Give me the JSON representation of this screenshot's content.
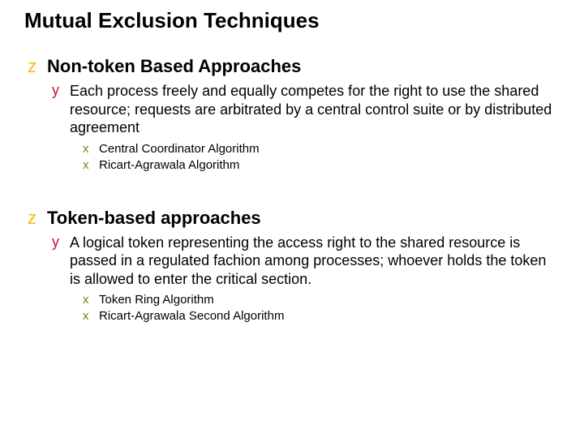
{
  "colors": {
    "title": "#000000",
    "z_bullet": "#fdb913",
    "y_bullet": "#c41230",
    "x_bullet": "#808000",
    "body_text": "#000000",
    "background": "#ffffff"
  },
  "typography": {
    "title_fontsize": 26,
    "z_text_fontsize": 22,
    "z_bullet_fontsize": 22,
    "y_text_fontsize": 18,
    "y_bullet_fontsize": 18,
    "x_text_fontsize": 15,
    "x_bullet_fontsize": 15
  },
  "title": "Mutual Exclusion Techniques",
  "sections": [
    {
      "bullet": "z",
      "heading": "Non-token Based Approaches",
      "ys": [
        {
          "bullet": "y",
          "text": "Each process freely and equally competes for the right to use the shared resource; requests are arbitrated by a central control suite or by distributed agreement",
          "xs": [
            {
              "bullet": "x",
              "text": "Central Coordinator Algorithm"
            },
            {
              "bullet": "x",
              "text": "Ricart-Agrawala Algorithm"
            }
          ]
        }
      ]
    },
    {
      "bullet": "z",
      "heading": "Token-based approaches",
      "ys": [
        {
          "bullet": "y",
          "text": "A logical token representing the access right to the shared resource is passed in a regulated fachion among processes; whoever holds the token is allowed to enter the critical section.",
          "xs": [
            {
              "bullet": "x",
              "text": "Token Ring Algorithm"
            },
            {
              "bullet": "x",
              "text": "Ricart-Agrawala Second Algorithm"
            }
          ]
        }
      ]
    }
  ]
}
